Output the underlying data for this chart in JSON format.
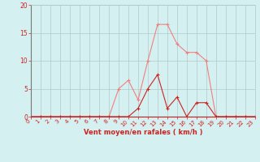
{
  "x_values": [
    0,
    1,
    2,
    3,
    4,
    5,
    6,
    7,
    8,
    9,
    10,
    11,
    12,
    13,
    14,
    15,
    16,
    17,
    18,
    19,
    20,
    21,
    22,
    23
  ],
  "light_line": [
    0,
    0,
    0,
    0,
    0,
    0,
    0,
    0,
    0,
    5,
    6.5,
    3,
    10,
    16.5,
    16.5,
    13,
    11.5,
    11.5,
    10,
    0,
    0,
    0,
    0,
    0
  ],
  "dark_line": [
    0,
    0,
    0,
    0,
    0,
    0,
    0,
    0,
    0,
    0,
    0,
    1.5,
    5,
    7.5,
    1.5,
    3.5,
    0,
    2.5,
    2.5,
    0,
    0,
    0,
    0,
    0
  ],
  "light_color": "#f08080",
  "dark_color": "#cc2222",
  "bg_color": "#d5f0f0",
  "grid_color": "#b0c8c8",
  "axis_color": "#cc2222",
  "xlabel": "Vent moyen/en rafales ( km/h )",
  "ylim": [
    0,
    20
  ],
  "xlim": [
    0,
    23
  ],
  "yticks": [
    0,
    5,
    10,
    15,
    20
  ],
  "xticks": [
    0,
    1,
    2,
    3,
    4,
    5,
    6,
    7,
    8,
    9,
    10,
    11,
    12,
    13,
    14,
    15,
    16,
    17,
    18,
    19,
    20,
    21,
    22,
    23
  ]
}
